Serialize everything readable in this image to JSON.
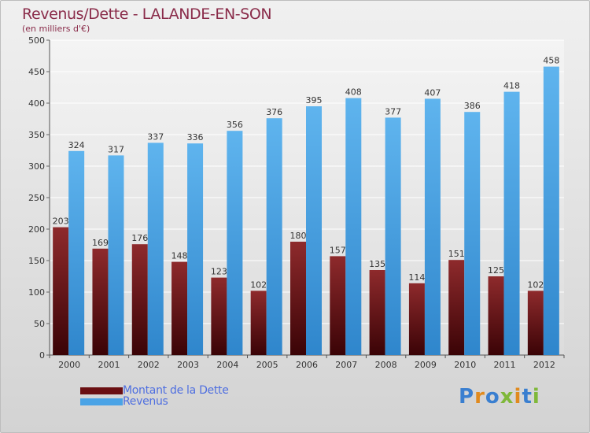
{
  "title": "Revenus/Dette - LALANDE-EN-SON",
  "subtitle": "(en milliers d'€)",
  "logo_text": "Proxiti",
  "colors": {
    "debt": "#6a0f12",
    "revenue": "#4aa3e6",
    "title": "#8a2c4a",
    "legend_text": "#4f6fe0"
  },
  "legend": [
    {
      "label": "Montant de la Dette",
      "color": "#6a0f12"
    },
    {
      "label": "Revenus",
      "color": "#4aa3e6"
    }
  ],
  "chart_data": {
    "type": "bar",
    "categories": [
      "2000",
      "2001",
      "2002",
      "2003",
      "2004",
      "2005",
      "2006",
      "2007",
      "2008",
      "2009",
      "2010",
      "2011",
      "2012"
    ],
    "series": [
      {
        "name": "Montant de la Dette",
        "values": [
          203,
          169,
          176,
          148,
          123,
          102,
          180,
          157,
          135,
          114,
          151,
          125,
          102
        ]
      },
      {
        "name": "Revenus",
        "values": [
          324,
          317,
          337,
          336,
          356,
          376,
          395,
          408,
          377,
          407,
          386,
          418,
          458
        ]
      }
    ],
    "ylim": [
      0,
      500
    ],
    "yticks": [
      0,
      50,
      100,
      150,
      200,
      250,
      300,
      350,
      400,
      450,
      500
    ],
    "grid": true,
    "legend_position": "bottom-left"
  }
}
